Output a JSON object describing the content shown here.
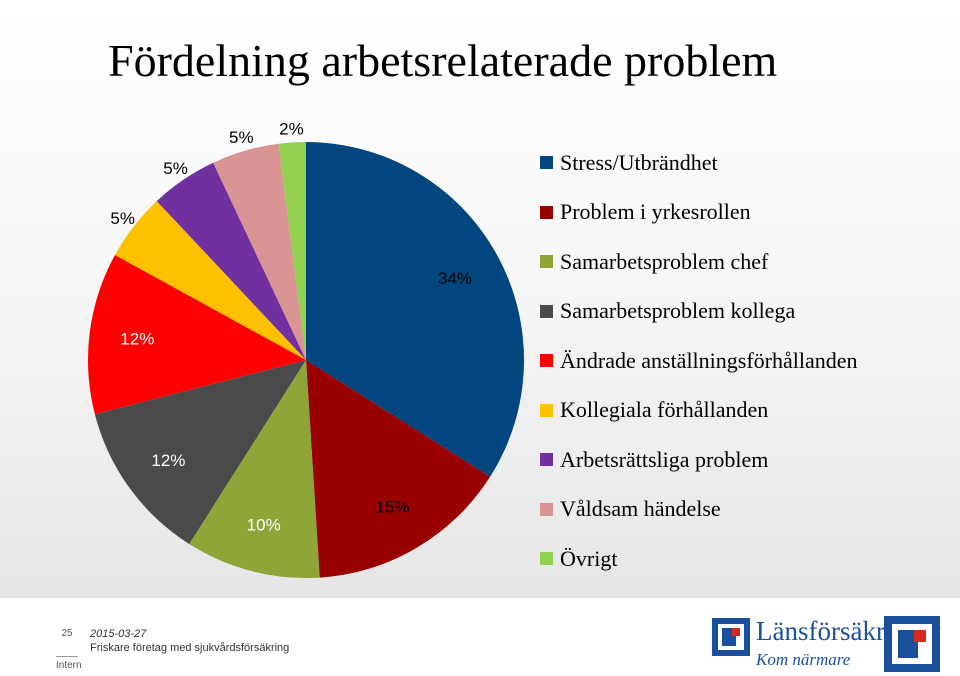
{
  "chart_data": {
    "type": "pie",
    "title": "Fördelning arbetsrelaterade problem",
    "legend_position": "right",
    "slices": [
      {
        "name": "Stress/Utbrändhet",
        "value": 34,
        "label": "34%",
        "color": "#01467e"
      },
      {
        "name": "Problem i yrkesrollen",
        "value": 15,
        "label": "15%",
        "color": "#990000"
      },
      {
        "name": "Samarbetsproblem chef",
        "value": 10,
        "label": "10%",
        "color": "#8ea638"
      },
      {
        "name": "Samarbetsproblem kollega",
        "value": 12,
        "label": "12%",
        "color": "#4a4a4a"
      },
      {
        "name": "Ändrade anställningsförhållanden",
        "value": 12,
        "label": "12%",
        "color": "#ff0000"
      },
      {
        "name": "Kollegiala förhållanden",
        "value": 5,
        "label": "5%",
        "color": "#ffc000"
      },
      {
        "name": "Arbetsrättsliga problem",
        "value": 5,
        "label": "5%",
        "color": "#7030a0"
      },
      {
        "name": "Våldsam händelse",
        "value": 5,
        "label": "5%",
        "color": "#d99594"
      },
      {
        "name": "Övrigt",
        "value": 2,
        "label": "2%",
        "color": "#92d050"
      }
    ]
  },
  "footer": {
    "page_number": "25",
    "classification": "Intern",
    "date": "2015-03-27",
    "organization": "Friskare företag med sjukvårdsförsäkring"
  },
  "logo": {
    "name": "Länsförsäkringar",
    "tagline": "Kom närmare"
  }
}
